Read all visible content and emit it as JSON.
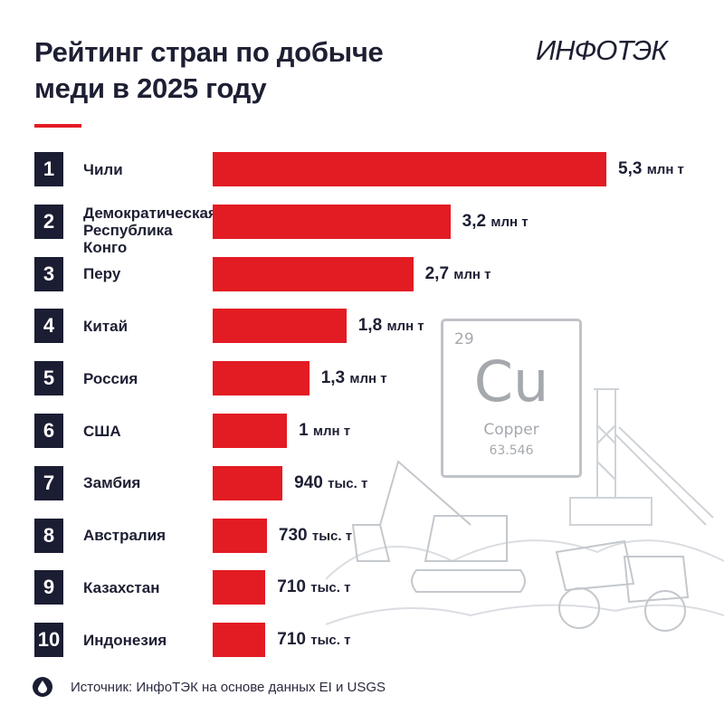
{
  "title_lines": [
    "Рейтинг стран по добыче",
    "меди в 2025 году"
  ],
  "logo": "ИНФОТЭК",
  "accent_color": "#e31b23",
  "rank_color": "#1b1d33",
  "element_tile": {
    "number": "29",
    "symbol": "Cu",
    "name": "Copper",
    "mass": "63.546"
  },
  "source": {
    "icon": "drop-icon",
    "text": "Источник: ИнфоТЭК на основе данных EI и USGS"
  },
  "chart_data": {
    "type": "bar",
    "orientation": "horizontal",
    "unit": "млн т",
    "ranks": [
      "1",
      "2",
      "3",
      "4",
      "5",
      "6",
      "7",
      "8",
      "9",
      "10"
    ],
    "categories": [
      [
        "Чили"
      ],
      [
        "Демократическая",
        "Республика Конго"
      ],
      [
        "Перу"
      ],
      [
        "Китай"
      ],
      [
        "Россия"
      ],
      [
        "США"
      ],
      [
        "Замбия"
      ],
      [
        "Австралия"
      ],
      [
        "Казахстан"
      ],
      [
        "Индонезия"
      ]
    ],
    "values": [
      5.3,
      3.2,
      2.7,
      1.8,
      1.3,
      1.0,
      0.94,
      0.73,
      0.71,
      0.71
    ],
    "value_labels": [
      [
        "5,3",
        "млн т"
      ],
      [
        "3,2",
        "млн т"
      ],
      [
        "2,7",
        "млн т"
      ],
      [
        "1,8",
        "млн т"
      ],
      [
        "1,3",
        "млн т"
      ],
      [
        "1",
        "млн т"
      ],
      [
        "940",
        "тыс. т"
      ],
      [
        "730",
        "тыс. т"
      ],
      [
        "710",
        "тыс. т"
      ],
      [
        "710",
        "тыс. т"
      ]
    ]
  }
}
